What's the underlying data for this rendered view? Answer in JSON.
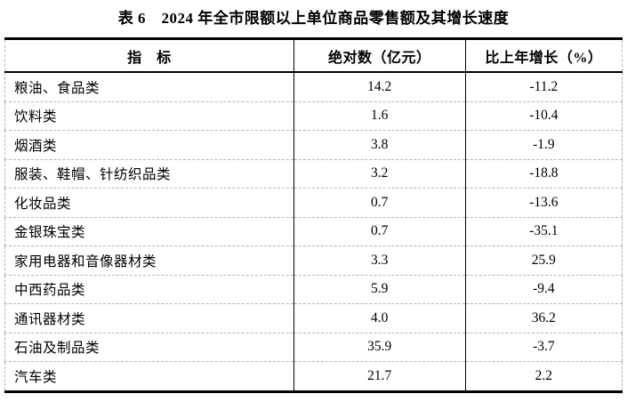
{
  "title": "表 6　2024 年全市限额以上单位商品零售额及其增长速度",
  "colors": {
    "background": "#ffffff",
    "text": "#000000",
    "solid_border": "#000000",
    "dashed_border": "#b5b5b5"
  },
  "table": {
    "columns": [
      "指　标",
      "绝对数（亿元）",
      "比上年增长（%）"
    ],
    "rows": [
      {
        "indicator": "粮油、食品类",
        "value": "14.2",
        "growth": "-11.2"
      },
      {
        "indicator": "饮料类",
        "value": "1.6",
        "growth": "-10.4"
      },
      {
        "indicator": "烟酒类",
        "value": "3.8",
        "growth": "-1.9"
      },
      {
        "indicator": "服装、鞋帽、针纺织品类",
        "value": "3.2",
        "growth": "-18.8"
      },
      {
        "indicator": "化妆品类",
        "value": "0.7",
        "growth": "-13.6"
      },
      {
        "indicator": "金银珠宝类",
        "value": "0.7",
        "growth": "-35.1"
      },
      {
        "indicator": "家用电器和音像器材类",
        "value": "3.3",
        "growth": "25.9"
      },
      {
        "indicator": "中西药品类",
        "value": "5.9",
        "growth": "-9.4"
      },
      {
        "indicator": "通讯器材类",
        "value": "4.0",
        "growth": "36.2"
      },
      {
        "indicator": "石油及制品类",
        "value": "35.9",
        "growth": "-3.7"
      },
      {
        "indicator": "汽车类",
        "value": "21.7",
        "growth": "2.2"
      }
    ]
  }
}
